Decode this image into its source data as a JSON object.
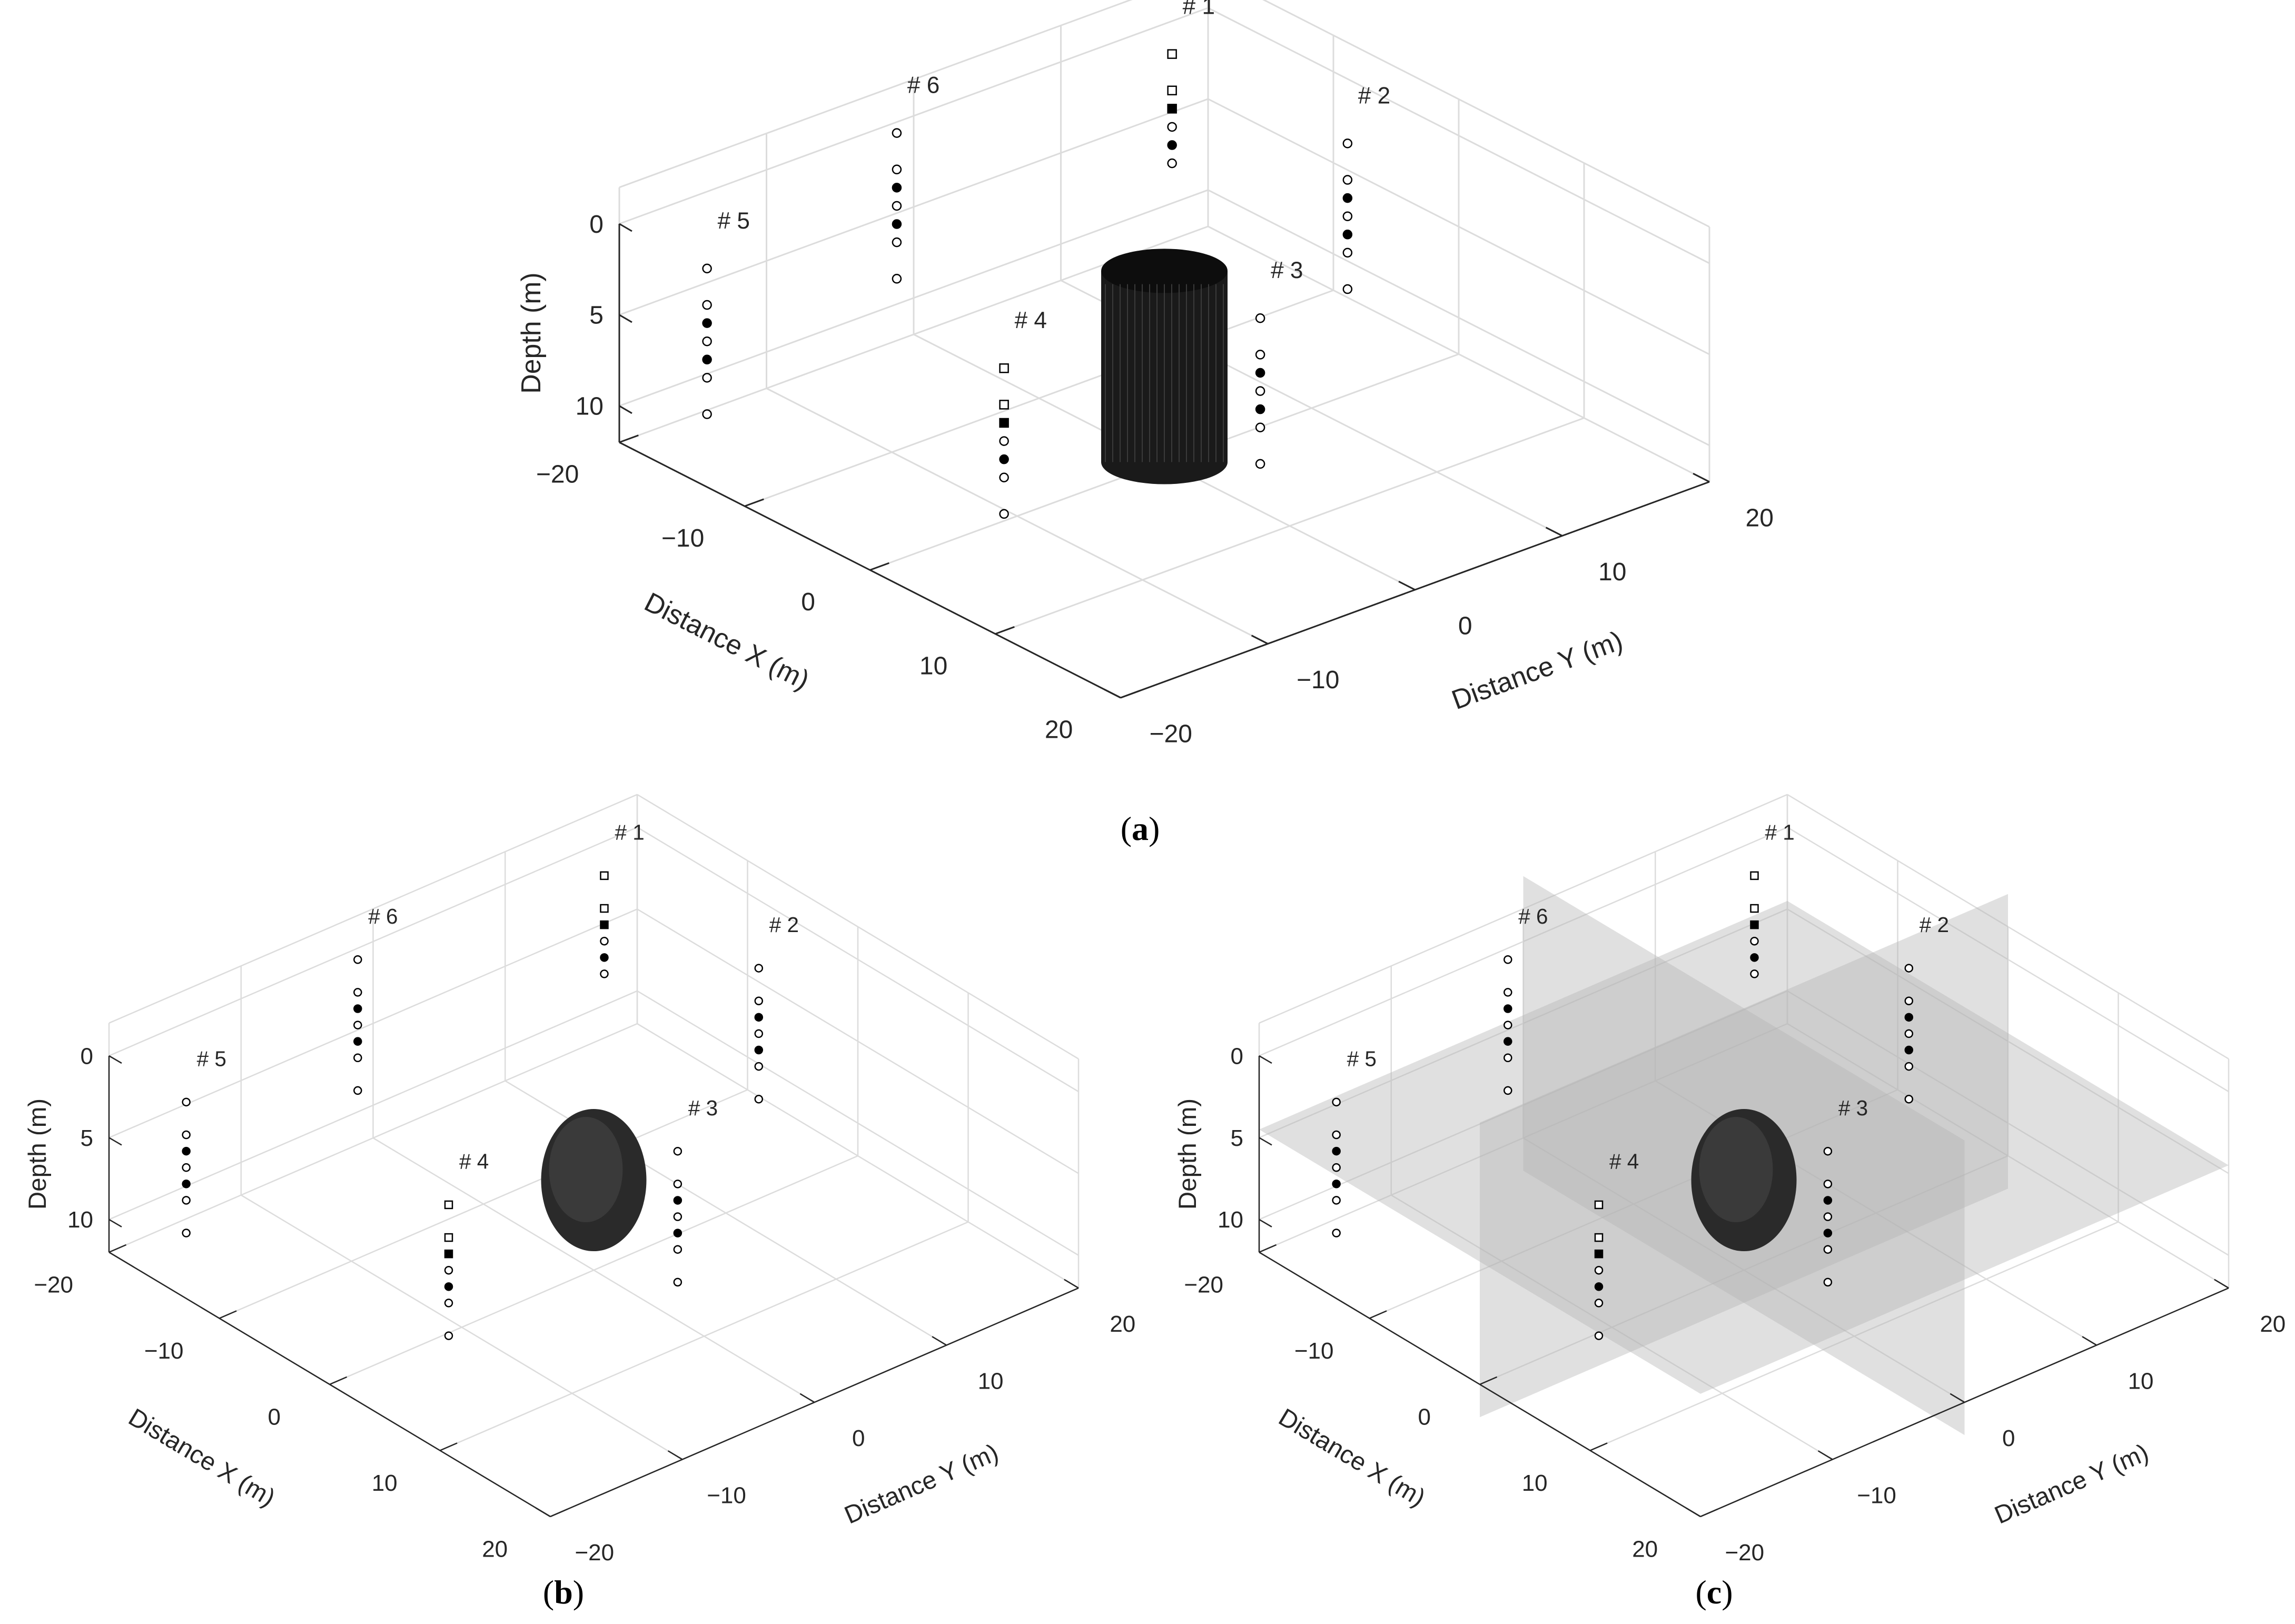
{
  "panels": [
    {
      "id": "a",
      "caption": "a",
      "anomaly": "cylinder",
      "slices": false
    },
    {
      "id": "b",
      "caption": "b",
      "anomaly": "ellipsoid",
      "slices": false
    },
    {
      "id": "c",
      "caption": "c",
      "anomaly": "ellipsoid",
      "slices": true
    }
  ],
  "axes": {
    "x_label": "Distance X (m)",
    "y_label": "Distance Y (m)",
    "z_label": "Depth (m)",
    "x_ticks": [
      "−20",
      "−10",
      "0",
      "10",
      "20"
    ],
    "y_ticks": [
      "−20",
      "−10",
      "0",
      "10",
      "20"
    ],
    "z_ticks": [
      "0",
      "5",
      "10"
    ],
    "x_range": [
      -20,
      20
    ],
    "y_range": [
      -20,
      20
    ],
    "z_range": [
      0,
      12
    ]
  },
  "boreholes": [
    {
      "label": "# 1",
      "x": -17,
      "y": 15,
      "top_marker": "square",
      "markers": [
        {
          "depth": 0,
          "type": "open-square"
        },
        {
          "depth": 2,
          "type": "open-square"
        },
        {
          "depth": 3,
          "type": "filled-square"
        },
        {
          "depth": 4,
          "type": "open-circle"
        },
        {
          "depth": 5,
          "type": "filled-circle"
        },
        {
          "depth": 6,
          "type": "open-circle"
        }
      ]
    },
    {
      "label": "# 2",
      "x": -3,
      "y": 15,
      "markers": [
        {
          "depth": 0,
          "type": "open-circle"
        },
        {
          "depth": 2,
          "type": "open-circle"
        },
        {
          "depth": 3,
          "type": "filled-circle"
        },
        {
          "depth": 4,
          "type": "open-circle"
        },
        {
          "depth": 5,
          "type": "filled-circle"
        },
        {
          "depth": 6,
          "type": "open-circle"
        },
        {
          "depth": 8,
          "type": "open-circle"
        }
      ]
    },
    {
      "label": "# 3",
      "x": 10,
      "y": -2,
      "markers": [
        {
          "depth": 0,
          "type": "open-circle"
        },
        {
          "depth": 2,
          "type": "open-circle"
        },
        {
          "depth": 3,
          "type": "filled-circle"
        },
        {
          "depth": 4,
          "type": "open-circle"
        },
        {
          "depth": 5,
          "type": "filled-circle"
        },
        {
          "depth": 6,
          "type": "open-circle"
        },
        {
          "depth": 8,
          "type": "open-circle"
        }
      ]
    },
    {
      "label": "# 4",
      "x": 6,
      "y": -16,
      "markers": [
        {
          "depth": 0,
          "type": "open-square"
        },
        {
          "depth": 2,
          "type": "open-square"
        },
        {
          "depth": 3,
          "type": "filled-square"
        },
        {
          "depth": 4,
          "type": "open-circle"
        },
        {
          "depth": 5,
          "type": "filled-circle"
        },
        {
          "depth": 6,
          "type": "open-circle"
        },
        {
          "depth": 8,
          "type": "open-circle"
        }
      ]
    },
    {
      "label": "# 5",
      "x": -13,
      "y": -20,
      "markers": [
        {
          "depth": 0,
          "type": "open-circle"
        },
        {
          "depth": 2,
          "type": "open-circle"
        },
        {
          "depth": 3,
          "type": "filled-circle"
        },
        {
          "depth": 4,
          "type": "open-circle"
        },
        {
          "depth": 5,
          "type": "filled-circle"
        },
        {
          "depth": 6,
          "type": "open-circle"
        },
        {
          "depth": 8,
          "type": "open-circle"
        }
      ]
    },
    {
      "label": "# 6",
      "x": -19,
      "y": -2,
      "markers": [
        {
          "depth": 0,
          "type": "open-circle"
        },
        {
          "depth": 2,
          "type": "open-circle"
        },
        {
          "depth": 3,
          "type": "filled-circle"
        },
        {
          "depth": 4,
          "type": "open-circle"
        },
        {
          "depth": 5,
          "type": "filled-circle"
        },
        {
          "depth": 6,
          "type": "open-circle"
        },
        {
          "depth": 8,
          "type": "open-circle"
        }
      ]
    }
  ],
  "colors": {
    "axis": "#262626",
    "grid": "#dcdcdc",
    "anomaly": "#1a1a1a",
    "slice": "#b4b4b4"
  }
}
